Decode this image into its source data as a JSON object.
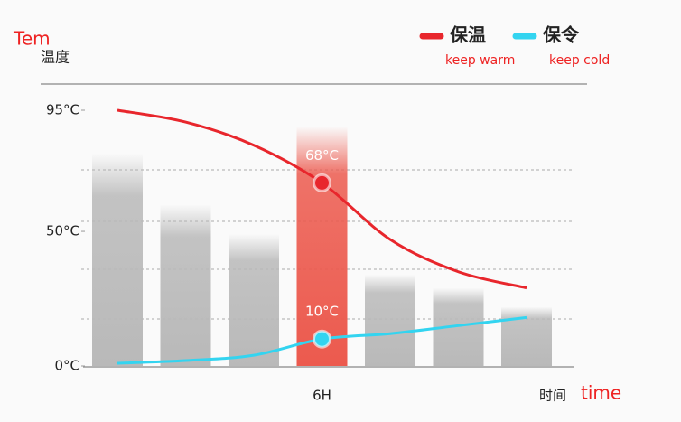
{
  "chart_data": {
    "type": "line",
    "y_axis_title": "温度",
    "x_axis_title": "时间",
    "annotations": {
      "y_note": "Tem",
      "x_note": "time",
      "warm_note": "keep warm",
      "cold_note": "keep cold"
    },
    "categories": [
      null,
      null,
      null,
      "6H",
      null,
      null,
      null
    ],
    "bar_values": [
      79,
      60,
      49,
      89,
      34,
      29,
      22
    ],
    "bar_colors": [
      "#b9b9b9",
      "#b9b9b9",
      "#b9b9b9",
      "#ec5a4e",
      "#b9b9b9",
      "#b9b9b9",
      "#b9b9b9"
    ],
    "series": [
      {
        "name": "保温",
        "color": "#e8262c",
        "values": [
          95,
          90.6,
          82,
          68,
          47,
          35,
          29
        ],
        "value_labels": [
          null,
          null,
          null,
          "68°C",
          null,
          null,
          null
        ]
      },
      {
        "name": "保令",
        "color": "#33d4f0",
        "values": [
          1,
          2,
          4,
          10,
          12,
          15,
          18
        ],
        "value_labels": [
          null,
          null,
          null,
          "10°C",
          null,
          null,
          null
        ]
      }
    ],
    "ylim": [
      0,
      95
    ],
    "yticks": [
      {
        "value": 0,
        "label": "0°C"
      },
      {
        "value": 50,
        "label": "50°C"
      },
      {
        "value": 95,
        "label": "95°C"
      }
    ]
  }
}
